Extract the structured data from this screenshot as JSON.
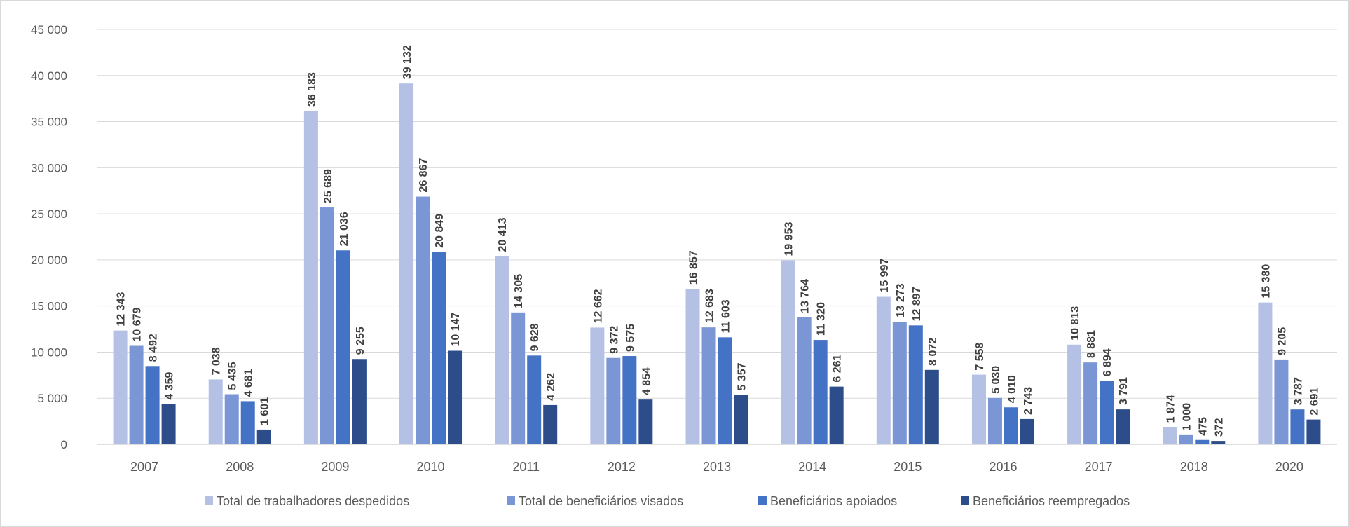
{
  "chart_data": {
    "type": "bar",
    "title": "",
    "xlabel": "",
    "ylabel": "",
    "ylim": [
      0,
      45000
    ],
    "yticks": [
      0,
      5000,
      10000,
      15000,
      20000,
      25000,
      30000,
      35000,
      40000,
      45000
    ],
    "ytick_labels": [
      "0",
      "5 000",
      "10 000",
      "15 000",
      "20 000",
      "25 000",
      "30 000",
      "35 000",
      "40 000",
      "45 000"
    ],
    "grid": true,
    "legend_position": "bottom",
    "categories": [
      "2007",
      "2008",
      "2009",
      "2010",
      "2011",
      "2012",
      "2013",
      "2014",
      "2015",
      "2016",
      "2017",
      "2018",
      "2020"
    ],
    "series": [
      {
        "name": "Total de trabalhadores despedidos",
        "color": "#b4c0e4",
        "values": [
          12343,
          7038,
          36183,
          39132,
          20413,
          12662,
          16857,
          19953,
          15997,
          7558,
          10813,
          1874,
          15380
        ],
        "labels": [
          "12 343",
          "7 038",
          "36 183",
          "39 132",
          "20 413",
          "12 662",
          "16 857",
          "19 953",
          "15 997",
          "7 558",
          "10 813",
          "1 874",
          "15 380"
        ]
      },
      {
        "name": "Total de beneficiários visados",
        "color": "#7b96d4",
        "values": [
          10679,
          5435,
          25689,
          26867,
          14305,
          9372,
          12683,
          13764,
          13273,
          5030,
          8881,
          1000,
          9205
        ],
        "labels": [
          "10 679",
          "5 435",
          "25 689",
          "26 867",
          "14 305",
          "9 372",
          "12 683",
          "13 764",
          "13 273",
          "5 030",
          "8 881",
          "1 000",
          "9 205"
        ]
      },
      {
        "name": "Beneficiários apoiados",
        "color": "#4472c4",
        "values": [
          8492,
          4681,
          21036,
          20849,
          9628,
          9575,
          11603,
          11320,
          12897,
          4010,
          6894,
          475,
          3787
        ],
        "labels": [
          "8 492",
          "4 681",
          "21 036",
          "20 849",
          "9 628",
          "9 575",
          "11 603",
          "11 320",
          "12 897",
          "4 010",
          "6 894",
          "475",
          "3 787"
        ]
      },
      {
        "name": "Beneficiários reempregados",
        "color": "#2c4d8a",
        "values": [
          4359,
          1601,
          9255,
          10147,
          4262,
          4854,
          5357,
          6261,
          8072,
          2743,
          3791,
          372,
          2691
        ],
        "labels": [
          "4 359",
          "1 601",
          "9 255",
          "10 147",
          "4 262",
          "4 854",
          "5 357",
          "6 261",
          "8 072",
          "2 743",
          "3 791",
          "372",
          "2 691"
        ]
      }
    ]
  }
}
